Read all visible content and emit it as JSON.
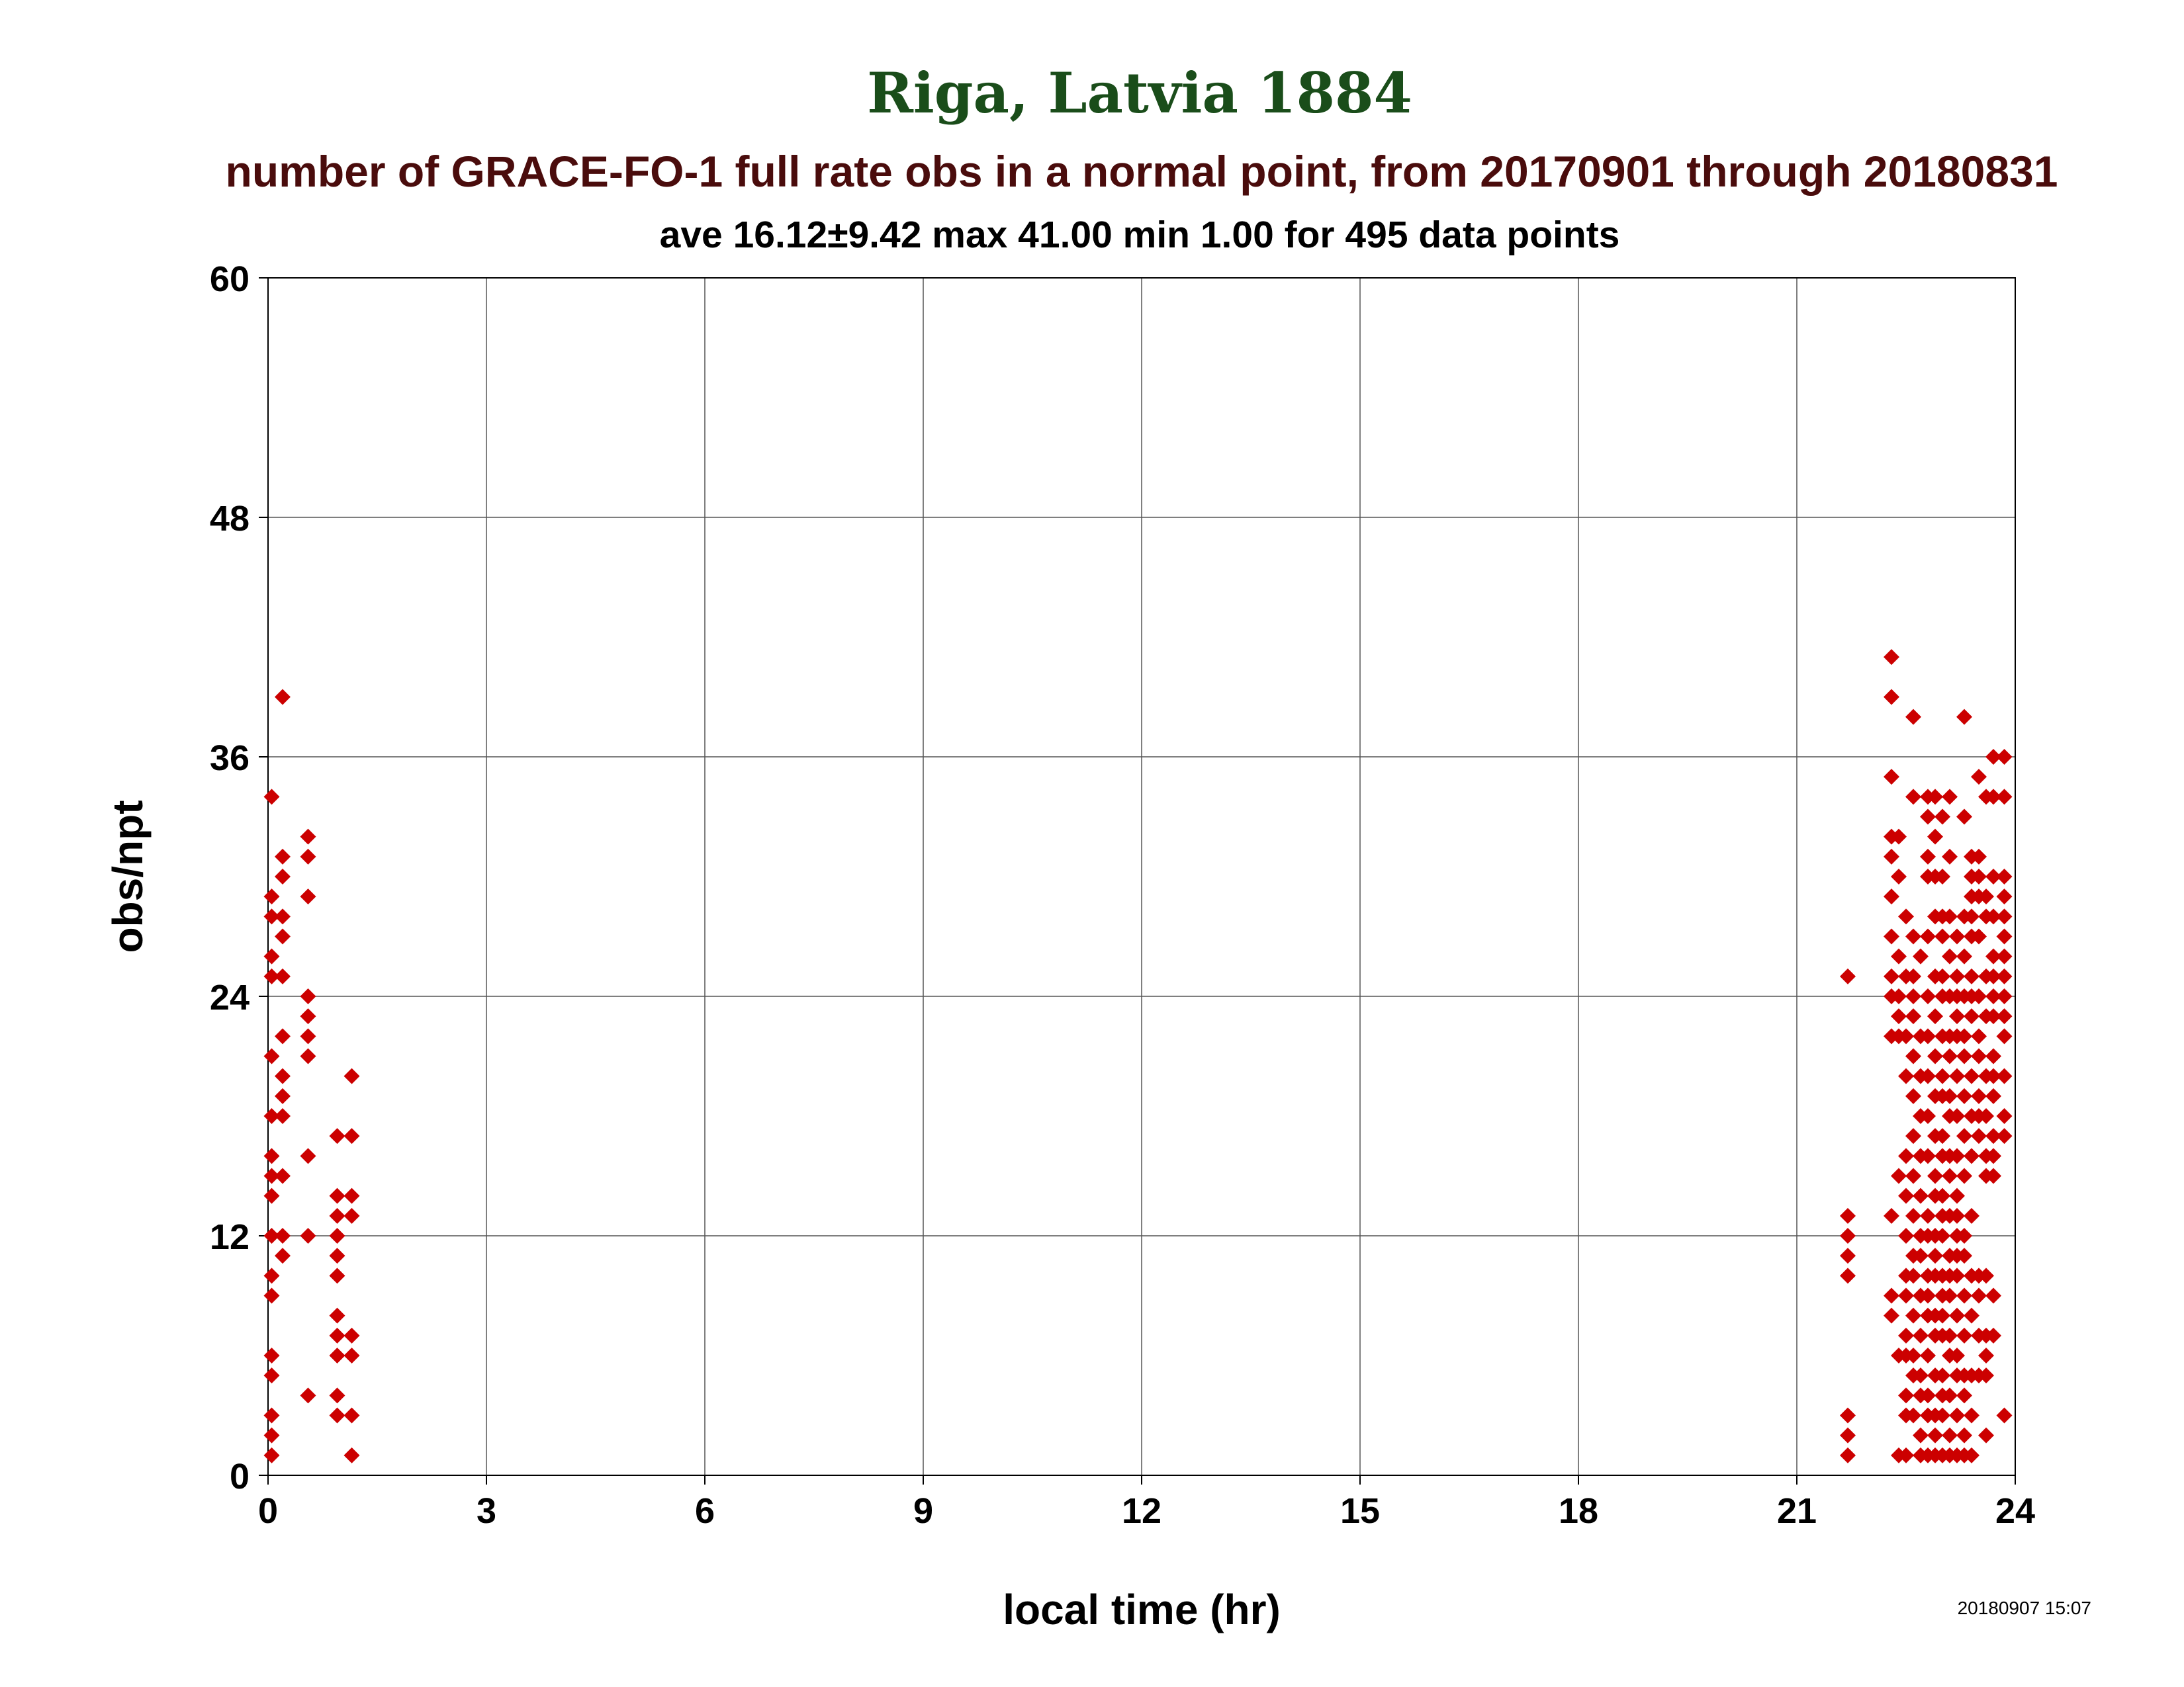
{
  "colors": {
    "title": "#1a4d1a",
    "subtitle": "#4a0c0c",
    "text": "#000000",
    "grid": "#555555",
    "marker": "#cc0000"
  },
  "chart_data": {
    "type": "scatter",
    "title": "Riga, Latvia 1884",
    "subtitle": "number of GRACE-FO-1 full rate obs in a normal point, from 20170901 through 20180831",
    "stats": "ave 16.12±9.42 max 41.00 min 1.00 for 495 data points",
    "xlabel": "local time (hr)",
    "ylabel": "obs/npt",
    "timestamp": "20180907 15:07",
    "xlim": [
      0,
      24
    ],
    "ylim": [
      0,
      60
    ],
    "xticks": [
      "0",
      "3",
      "6",
      "9",
      "12",
      "15",
      "18",
      "21",
      "24"
    ],
    "yticks": [
      "0",
      "12",
      "24",
      "36",
      "48",
      "60"
    ],
    "grid": true,
    "marker": "diamond",
    "points": [
      [
        0.05,
        34
      ],
      [
        0.05,
        29
      ],
      [
        0.05,
        28
      ],
      [
        0.05,
        26
      ],
      [
        0.05,
        25
      ],
      [
        0.05,
        21
      ],
      [
        0.05,
        18
      ],
      [
        0.05,
        16
      ],
      [
        0.05,
        15
      ],
      [
        0.05,
        14
      ],
      [
        0.05,
        12
      ],
      [
        0.05,
        10
      ],
      [
        0.05,
        9
      ],
      [
        0.05,
        6
      ],
      [
        0.05,
        5
      ],
      [
        0.05,
        3
      ],
      [
        0.05,
        2
      ],
      [
        0.05,
        1
      ],
      [
        0.2,
        39
      ],
      [
        0.2,
        31
      ],
      [
        0.2,
        30
      ],
      [
        0.2,
        28
      ],
      [
        0.2,
        27
      ],
      [
        0.2,
        25
      ],
      [
        0.2,
        22
      ],
      [
        0.2,
        20
      ],
      [
        0.2,
        19
      ],
      [
        0.2,
        18
      ],
      [
        0.2,
        15
      ],
      [
        0.2,
        12
      ],
      [
        0.2,
        11
      ],
      [
        0.55,
        32
      ],
      [
        0.55,
        31
      ],
      [
        0.55,
        29
      ],
      [
        0.55,
        24
      ],
      [
        0.55,
        23
      ],
      [
        0.55,
        22
      ],
      [
        0.55,
        21
      ],
      [
        0.55,
        16
      ],
      [
        0.55,
        12
      ],
      [
        0.55,
        4
      ],
      [
        0.95,
        17
      ],
      [
        0.95,
        14
      ],
      [
        0.95,
        13
      ],
      [
        0.95,
        12
      ],
      [
        0.95,
        11
      ],
      [
        0.95,
        10
      ],
      [
        0.95,
        8
      ],
      [
        0.95,
        7
      ],
      [
        0.95,
        6
      ],
      [
        0.95,
        4
      ],
      [
        0.95,
        3
      ],
      [
        1.15,
        20
      ],
      [
        1.15,
        17
      ],
      [
        1.15,
        14
      ],
      [
        1.15,
        13
      ],
      [
        1.15,
        7
      ],
      [
        1.15,
        6
      ],
      [
        1.15,
        3
      ],
      [
        1.15,
        1
      ],
      [
        21.7,
        25
      ],
      [
        21.7,
        13
      ],
      [
        21.7,
        12
      ],
      [
        21.7,
        11
      ],
      [
        21.7,
        10
      ],
      [
        21.7,
        3
      ],
      [
        21.7,
        2
      ],
      [
        21.7,
        1
      ],
      [
        22.3,
        41
      ],
      [
        22.3,
        39
      ],
      [
        22.3,
        35
      ],
      [
        22.3,
        32
      ],
      [
        22.3,
        31
      ],
      [
        22.3,
        29
      ],
      [
        22.3,
        27
      ],
      [
        22.3,
        25
      ],
      [
        22.3,
        24
      ],
      [
        22.3,
        22
      ],
      [
        22.3,
        13
      ],
      [
        22.3,
        9
      ],
      [
        22.3,
        8
      ],
      [
        22.4,
        32
      ],
      [
        22.4,
        30
      ],
      [
        22.4,
        26
      ],
      [
        22.4,
        24
      ],
      [
        22.4,
        23
      ],
      [
        22.4,
        22
      ],
      [
        22.4,
        15
      ],
      [
        22.4,
        6
      ],
      [
        22.4,
        1
      ],
      [
        22.5,
        28
      ],
      [
        22.5,
        25
      ],
      [
        22.5,
        22
      ],
      [
        22.5,
        20
      ],
      [
        22.5,
        16
      ],
      [
        22.5,
        14
      ],
      [
        22.5,
        12
      ],
      [
        22.5,
        10
      ],
      [
        22.5,
        9
      ],
      [
        22.5,
        7
      ],
      [
        22.5,
        6
      ],
      [
        22.5,
        4
      ],
      [
        22.5,
        3
      ],
      [
        22.5,
        1
      ],
      [
        22.6,
        38
      ],
      [
        22.6,
        34
      ],
      [
        22.6,
        27
      ],
      [
        22.6,
        25
      ],
      [
        22.6,
        24
      ],
      [
        22.6,
        23
      ],
      [
        22.6,
        21
      ],
      [
        22.6,
        19
      ],
      [
        22.6,
        17
      ],
      [
        22.6,
        15
      ],
      [
        22.6,
        13
      ],
      [
        22.6,
        11
      ],
      [
        22.6,
        10
      ],
      [
        22.6,
        8
      ],
      [
        22.6,
        6
      ],
      [
        22.6,
        5
      ],
      [
        22.6,
        3
      ],
      [
        22.7,
        26
      ],
      [
        22.7,
        22
      ],
      [
        22.7,
        20
      ],
      [
        22.7,
        18
      ],
      [
        22.7,
        16
      ],
      [
        22.7,
        14
      ],
      [
        22.7,
        12
      ],
      [
        22.7,
        11
      ],
      [
        22.7,
        9
      ],
      [
        22.7,
        7
      ],
      [
        22.7,
        5
      ],
      [
        22.7,
        4
      ],
      [
        22.7,
        2
      ],
      [
        22.7,
        1
      ],
      [
        22.8,
        34
      ],
      [
        22.8,
        33
      ],
      [
        22.8,
        31
      ],
      [
        22.8,
        30
      ],
      [
        22.8,
        27
      ],
      [
        22.8,
        24
      ],
      [
        22.8,
        22
      ],
      [
        22.8,
        20
      ],
      [
        22.8,
        18
      ],
      [
        22.8,
        16
      ],
      [
        22.8,
        13
      ],
      [
        22.8,
        12
      ],
      [
        22.8,
        10
      ],
      [
        22.8,
        9
      ],
      [
        22.8,
        8
      ],
      [
        22.8,
        6
      ],
      [
        22.8,
        4
      ],
      [
        22.8,
        3
      ],
      [
        22.8,
        1
      ],
      [
        22.9,
        34
      ],
      [
        22.9,
        32
      ],
      [
        22.9,
        30
      ],
      [
        22.9,
        28
      ],
      [
        22.9,
        25
      ],
      [
        22.9,
        23
      ],
      [
        22.9,
        21
      ],
      [
        22.9,
        19
      ],
      [
        22.9,
        17
      ],
      [
        22.9,
        15
      ],
      [
        22.9,
        14
      ],
      [
        22.9,
        12
      ],
      [
        22.9,
        11
      ],
      [
        22.9,
        10
      ],
      [
        22.9,
        8
      ],
      [
        22.9,
        7
      ],
      [
        22.9,
        5
      ],
      [
        22.9,
        3
      ],
      [
        22.9,
        2
      ],
      [
        22.9,
        1
      ],
      [
        23.0,
        33
      ],
      [
        23.0,
        30
      ],
      [
        23.0,
        28
      ],
      [
        23.0,
        27
      ],
      [
        23.0,
        25
      ],
      [
        23.0,
        24
      ],
      [
        23.0,
        22
      ],
      [
        23.0,
        20
      ],
      [
        23.0,
        19
      ],
      [
        23.0,
        17
      ],
      [
        23.0,
        16
      ],
      [
        23.0,
        14
      ],
      [
        23.0,
        13
      ],
      [
        23.0,
        12
      ],
      [
        23.0,
        10
      ],
      [
        23.0,
        9
      ],
      [
        23.0,
        8
      ],
      [
        23.0,
        7
      ],
      [
        23.0,
        5
      ],
      [
        23.0,
        4
      ],
      [
        23.0,
        3
      ],
      [
        23.0,
        1
      ],
      [
        23.1,
        34
      ],
      [
        23.1,
        31
      ],
      [
        23.1,
        28
      ],
      [
        23.1,
        26
      ],
      [
        23.1,
        24
      ],
      [
        23.1,
        22
      ],
      [
        23.1,
        21
      ],
      [
        23.1,
        19
      ],
      [
        23.1,
        18
      ],
      [
        23.1,
        16
      ],
      [
        23.1,
        15
      ],
      [
        23.1,
        13
      ],
      [
        23.1,
        11
      ],
      [
        23.1,
        10
      ],
      [
        23.1,
        9
      ],
      [
        23.1,
        7
      ],
      [
        23.1,
        6
      ],
      [
        23.1,
        4
      ],
      [
        23.1,
        2
      ],
      [
        23.1,
        1
      ],
      [
        23.2,
        27
      ],
      [
        23.2,
        25
      ],
      [
        23.2,
        24
      ],
      [
        23.2,
        23
      ],
      [
        23.2,
        22
      ],
      [
        23.2,
        20
      ],
      [
        23.2,
        18
      ],
      [
        23.2,
        16
      ],
      [
        23.2,
        14
      ],
      [
        23.2,
        13
      ],
      [
        23.2,
        12
      ],
      [
        23.2,
        11
      ],
      [
        23.2,
        10
      ],
      [
        23.2,
        8
      ],
      [
        23.2,
        6
      ],
      [
        23.2,
        5
      ],
      [
        23.2,
        3
      ],
      [
        23.2,
        1
      ],
      [
        23.3,
        38
      ],
      [
        23.3,
        33
      ],
      [
        23.3,
        28
      ],
      [
        23.3,
        26
      ],
      [
        23.3,
        24
      ],
      [
        23.3,
        22
      ],
      [
        23.3,
        21
      ],
      [
        23.3,
        19
      ],
      [
        23.3,
        17
      ],
      [
        23.3,
        15
      ],
      [
        23.3,
        12
      ],
      [
        23.3,
        11
      ],
      [
        23.3,
        9
      ],
      [
        23.3,
        7
      ],
      [
        23.3,
        5
      ],
      [
        23.3,
        4
      ],
      [
        23.3,
        2
      ],
      [
        23.3,
        1
      ],
      [
        23.4,
        31
      ],
      [
        23.4,
        30
      ],
      [
        23.4,
        29
      ],
      [
        23.4,
        28
      ],
      [
        23.4,
        27
      ],
      [
        23.4,
        25
      ],
      [
        23.4,
        24
      ],
      [
        23.4,
        23
      ],
      [
        23.4,
        20
      ],
      [
        23.4,
        18
      ],
      [
        23.4,
        16
      ],
      [
        23.4,
        13
      ],
      [
        23.4,
        10
      ],
      [
        23.4,
        8
      ],
      [
        23.4,
        5
      ],
      [
        23.4,
        3
      ],
      [
        23.4,
        1
      ],
      [
        23.5,
        35
      ],
      [
        23.5,
        31
      ],
      [
        23.5,
        30
      ],
      [
        23.5,
        29
      ],
      [
        23.5,
        27
      ],
      [
        23.5,
        24
      ],
      [
        23.5,
        22
      ],
      [
        23.5,
        21
      ],
      [
        23.5,
        19
      ],
      [
        23.5,
        18
      ],
      [
        23.5,
        17
      ],
      [
        23.5,
        10
      ],
      [
        23.5,
        9
      ],
      [
        23.5,
        7
      ],
      [
        23.5,
        5
      ],
      [
        23.6,
        34
      ],
      [
        23.6,
        29
      ],
      [
        23.6,
        28
      ],
      [
        23.6,
        25
      ],
      [
        23.6,
        23
      ],
      [
        23.6,
        20
      ],
      [
        23.6,
        18
      ],
      [
        23.6,
        16
      ],
      [
        23.6,
        15
      ],
      [
        23.6,
        10
      ],
      [
        23.6,
        7
      ],
      [
        23.6,
        6
      ],
      [
        23.6,
        5
      ],
      [
        23.6,
        2
      ],
      [
        23.7,
        36
      ],
      [
        23.7,
        34
      ],
      [
        23.7,
        30
      ],
      [
        23.7,
        28
      ],
      [
        23.7,
        26
      ],
      [
        23.7,
        25
      ],
      [
        23.7,
        24
      ],
      [
        23.7,
        23
      ],
      [
        23.7,
        21
      ],
      [
        23.7,
        20
      ],
      [
        23.7,
        19
      ],
      [
        23.7,
        17
      ],
      [
        23.7,
        16
      ],
      [
        23.7,
        15
      ],
      [
        23.7,
        9
      ],
      [
        23.7,
        7
      ],
      [
        23.85,
        36
      ],
      [
        23.85,
        34
      ],
      [
        23.85,
        30
      ],
      [
        23.85,
        29
      ],
      [
        23.85,
        28
      ],
      [
        23.85,
        27
      ],
      [
        23.85,
        26
      ],
      [
        23.85,
        25
      ],
      [
        23.85,
        24
      ],
      [
        23.85,
        23
      ],
      [
        23.85,
        22
      ],
      [
        23.85,
        20
      ],
      [
        23.85,
        18
      ],
      [
        23.85,
        17
      ],
      [
        23.85,
        3
      ]
    ]
  }
}
